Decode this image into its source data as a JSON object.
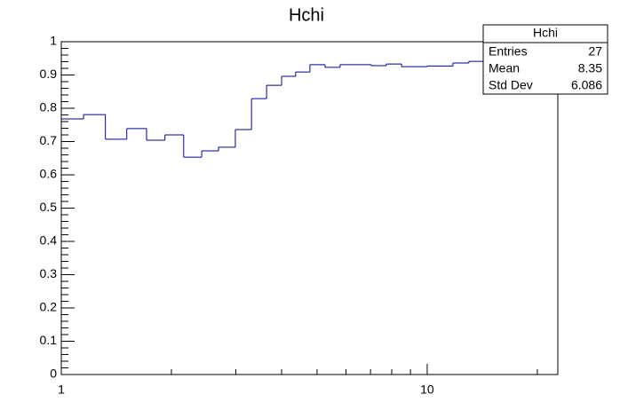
{
  "chart_data": {
    "type": "histogram",
    "title": "Hchi",
    "color": "#000099",
    "bins": [
      1,
      1.15,
      1.32,
      1.51,
      1.71,
      1.92,
      2.16,
      2.42,
      2.69,
      2.99,
      3.31,
      3.64,
      4.0,
      4.37,
      4.78,
      5.26,
      5.78,
      6.36,
      7.03,
      7.73,
      8.51,
      10,
      11.76,
      13.0,
      14.3,
      17.0,
      22.75
    ],
    "values": [
      0.768,
      0.781,
      0.707,
      0.739,
      0.704,
      0.72,
      0.653,
      0.672,
      0.683,
      0.736,
      0.829,
      0.869,
      0.896,
      0.909,
      0.931,
      0.923,
      0.931,
      0.931,
      0.928,
      0.933,
      0.925,
      0.927,
      0.936,
      0.941,
      0.935,
      0.94
    ],
    "xlim": [
      1,
      22.75
    ],
    "xlog": true,
    "xticks": [
      1,
      10
    ],
    "xminorticks": [
      2,
      3,
      4,
      5,
      6,
      7,
      8,
      9,
      20
    ],
    "ylim": [
      0,
      1
    ],
    "yticks": [
      0,
      0.1,
      0.2,
      0.3,
      0.4,
      0.5,
      0.6,
      0.7,
      0.8,
      0.9,
      1
    ],
    "stats": {
      "title": "Hchi",
      "rows": [
        {
          "label": "Entries",
          "value": 27
        },
        {
          "label": "Mean",
          "value": 8.35
        },
        {
          "label": "Std Dev",
          "value": 6.086
        }
      ]
    }
  }
}
